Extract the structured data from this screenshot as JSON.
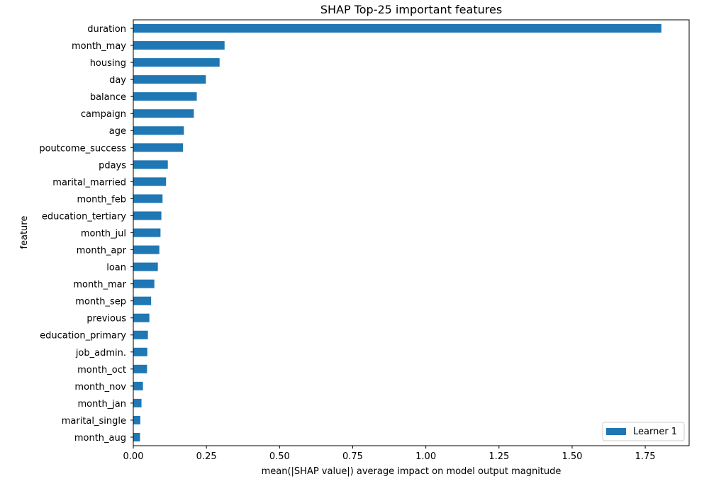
{
  "chart_data": {
    "type": "bar",
    "orientation": "horizontal",
    "title": "SHAP Top-25 important features",
    "xlabel": "mean(|SHAP value|) average impact on model output magnitude",
    "ylabel": "feature",
    "xlim": [
      0,
      1.9
    ],
    "xticks": [
      "0.00",
      "0.25",
      "0.50",
      "0.75",
      "1.00",
      "1.25",
      "1.50",
      "1.75"
    ],
    "categories": [
      "duration",
      "month_may",
      "housing",
      "day",
      "balance",
      "campaign",
      "age",
      "poutcome_success",
      "pdays",
      "marital_married",
      "month_feb",
      "education_tertiary",
      "month_jul",
      "month_apr",
      "loan",
      "month_mar",
      "month_sep",
      "previous",
      "education_primary",
      "job_admin.",
      "month_oct",
      "month_nov",
      "month_jan",
      "marital_single",
      "month_aug"
    ],
    "series": [
      {
        "name": "Learner 1",
        "color": "#1f77b4",
        "values": [
          1.805,
          0.312,
          0.295,
          0.248,
          0.217,
          0.207,
          0.173,
          0.17,
          0.118,
          0.112,
          0.1,
          0.096,
          0.093,
          0.089,
          0.084,
          0.072,
          0.061,
          0.055,
          0.05,
          0.048,
          0.047,
          0.033,
          0.028,
          0.024,
          0.023
        ]
      }
    ],
    "legend": {
      "position": "lower-right"
    },
    "grid": false
  }
}
